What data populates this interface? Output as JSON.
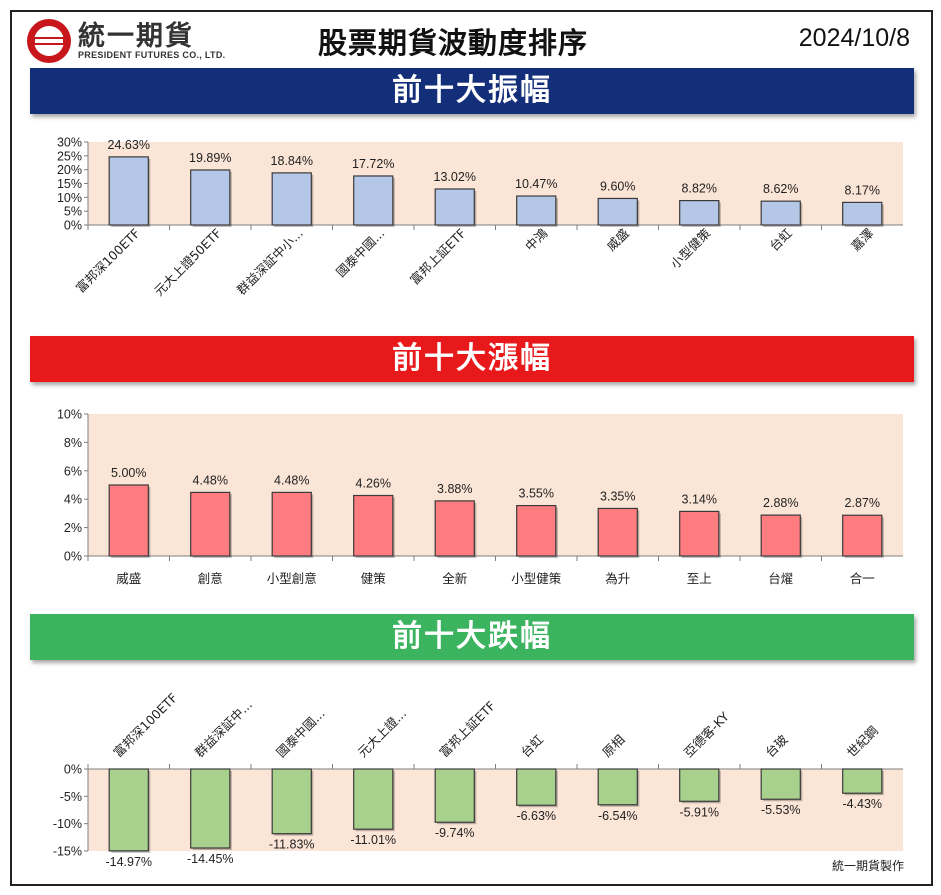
{
  "header": {
    "logo_text": "統一期貨",
    "logo_sub": "PRESIDENT FUTURES CO., LTD.",
    "title": "股票期貨波動度排序",
    "date": "2024/10/8"
  },
  "colors": {
    "amplitude_banner": "#142f7a",
    "rise_banner": "#e8191b",
    "fall_banner": "#3cb35f",
    "plot_bg": "#fbe5d6",
    "amplitude_bar": "#b4c7e7",
    "rise_bar": "#ff7c80",
    "fall_bar": "#a9d18e",
    "logo_red": "#c8161d"
  },
  "icons": {
    "logo": "president-logo-icon"
  },
  "footer": {
    "credit": "統一期貨製作"
  },
  "chart_data": [
    {
      "type": "bar",
      "title": "前十大振幅",
      "categories": [
        "富邦深100ETF",
        "元大上證50ETF",
        "群益深証中小...",
        "國泰中國...",
        "富邦上証ETF",
        "中鴻",
        "威盛",
        "小型健策",
        "台虹",
        "嘉澤"
      ],
      "values": [
        24.63,
        19.89,
        18.84,
        17.72,
        13.02,
        10.47,
        9.6,
        8.82,
        8.62,
        8.17
      ],
      "value_labels": [
        "24.63%",
        "19.89%",
        "18.84%",
        "17.72%",
        "13.02%",
        "10.47%",
        "9.60%",
        "8.82%",
        "8.62%",
        "8.17%"
      ],
      "yticks": [
        "0%",
        "5%",
        "10%",
        "15%",
        "20%",
        "25%",
        "30%"
      ],
      "ylim": [
        0,
        30
      ],
      "grid": false,
      "legend": "none"
    },
    {
      "type": "bar",
      "title": "前十大漲幅",
      "categories": [
        "威盛",
        "創意",
        "小型創意",
        "健策",
        "全新",
        "小型健策",
        "為升",
        "至上",
        "台燿",
        "合一"
      ],
      "values": [
        5.0,
        4.48,
        4.48,
        4.26,
        3.88,
        3.55,
        3.35,
        3.14,
        2.88,
        2.87
      ],
      "value_labels": [
        "5.00%",
        "4.48%",
        "4.48%",
        "4.26%",
        "3.88%",
        "3.55%",
        "3.35%",
        "3.14%",
        "2.88%",
        "2.87%"
      ],
      "yticks": [
        "0%",
        "2%",
        "4%",
        "6%",
        "8%",
        "10%"
      ],
      "ylim": [
        0,
        10
      ],
      "grid": false,
      "legend": "none"
    },
    {
      "type": "bar",
      "title": "前十大跌幅",
      "categories": [
        "富邦深100ETF",
        "群益深証中...",
        "國泰中國...",
        "元大上證...",
        "富邦上証ETF",
        "台虹",
        "原相",
        "亞德客-KY",
        "台玻",
        "世紀鋼"
      ],
      "values": [
        -14.97,
        -14.45,
        -11.83,
        -11.01,
        -9.74,
        -6.63,
        -6.54,
        -5.91,
        -5.53,
        -4.43
      ],
      "value_labels": [
        "-14.97%",
        "-14.45%",
        "-11.83%",
        "-11.01%",
        "-9.74%",
        "-6.63%",
        "-6.54%",
        "-5.91%",
        "-5.53%",
        "-4.43%"
      ],
      "yticks": [
        "-15%",
        "-10%",
        "-5%",
        "0%"
      ],
      "ylim": [
        -15,
        0
      ],
      "grid": false,
      "legend": "none"
    }
  ]
}
